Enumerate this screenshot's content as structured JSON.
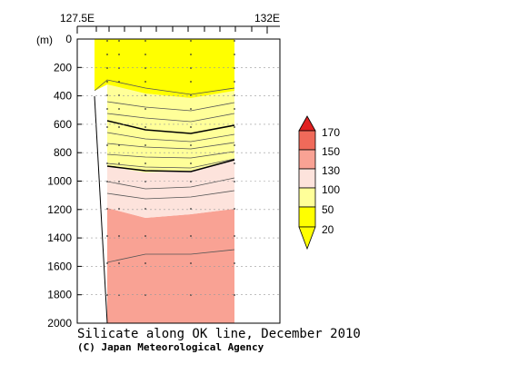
{
  "chart_data": {
    "type": "heatmap",
    "title": "Silicate along OK line, December 2010",
    "credit": "(C) Japan Meteorological Agency",
    "x_ticks": [
      "127.5E",
      "132E"
    ],
    "ylabel": "(m)",
    "y_ticks": [
      0,
      200,
      400,
      600,
      800,
      1000,
      1200,
      1400,
      1600,
      1800,
      2000
    ],
    "ylim": [
      0,
      2000
    ],
    "y_inverted": true,
    "grid": true,
    "colorbar": {
      "levels": [
        20,
        50,
        100,
        130,
        150,
        170
      ],
      "colors": {
        "below_20": "#ffff00",
        "20_50": "#ffff00",
        "50_100": "#ffff99",
        "100_130": "#fde3dc",
        "130_150": "#f9a294",
        "150_170": "#f06a5a",
        "above_170": "#e02020"
      }
    },
    "layers": [
      {
        "range": "<50",
        "upper_depth": 0,
        "lower_depth": 400,
        "color": "#ffff00"
      },
      {
        "range": "50-100",
        "upper_depth": 400,
        "lower_depth": 930,
        "color": "#ffff99"
      },
      {
        "range": "100-130",
        "upper_depth": 930,
        "lower_depth": 1230,
        "color": "#fde3dc"
      },
      {
        "range": "130-150",
        "upper_depth": 1230,
        "lower_depth": 2000,
        "color": "#f9a294"
      }
    ]
  }
}
